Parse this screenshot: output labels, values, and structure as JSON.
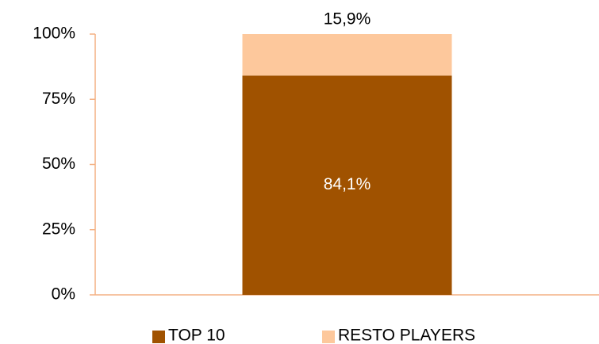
{
  "chart_data": {
    "type": "stacked_bar",
    "categories": [
      null
    ],
    "series": [
      {
        "name": "TOP 10",
        "color": "#a05200",
        "values": [
          84.1
        ],
        "value_labels": [
          "84,1%"
        ]
      },
      {
        "name": "RESTO PLAYERS",
        "color": "#fdc89c",
        "values": [
          15.9
        ],
        "value_labels": [
          "15,9%"
        ]
      }
    ],
    "ylim": [
      0,
      100
    ],
    "yticks": [
      {
        "value": 0,
        "label": "0%"
      },
      {
        "value": 25,
        "label": "25%"
      },
      {
        "value": 50,
        "label": "50%"
      },
      {
        "value": 75,
        "label": "75%"
      },
      {
        "value": 100,
        "label": "100%"
      }
    ],
    "legend": "bottom"
  }
}
